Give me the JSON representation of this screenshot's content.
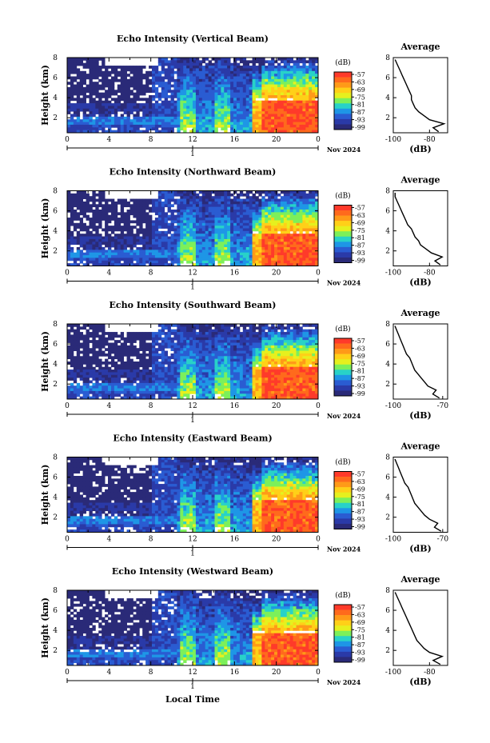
{
  "figure": {
    "xlabel": "Local Time",
    "date_label": "Nov 2024",
    "day_label": "1",
    "unit_label": "(dB)",
    "ylabel": "Height (km)",
    "avg_title": "Average",
    "avg_xlabel": "(dB)"
  },
  "colorbar": {
    "ticks": [
      "-57",
      "-63",
      "-69",
      "-75",
      "-81",
      "-87",
      "-93",
      "-99"
    ],
    "colors": [
      "#ff3a2a",
      "#ff6a1c",
      "#ff9a18",
      "#ffd018",
      "#e6f01e",
      "#7cf05a",
      "#28d2c8",
      "#1e96e6",
      "#2a5cd2",
      "#2a3aa8",
      "#2a2a78"
    ]
  },
  "colors": {
    "gap": "#ffffff",
    "line": "#000000"
  },
  "chart_data": [
    {
      "type": "heatmap",
      "title": "Echo Intensity (Vertical Beam)",
      "x_ticks": [
        "0",
        "4",
        "8",
        "12",
        "16",
        "20",
        "0"
      ],
      "xlim": [
        0,
        24
      ],
      "y_ticks": [
        "8",
        "6",
        "4",
        "2"
      ],
      "ylim": [
        0.5,
        8
      ],
      "avg_profile": {
        "xlim": [
          -100,
          -70
        ],
        "x_ticks": [
          "-100",
          "-80"
        ],
        "y_ticks": [
          "8",
          "6",
          "4",
          "2"
        ],
        "ylim": [
          0.5,
          8
        ],
        "height_km": [
          0.6,
          1.0,
          1.4,
          1.8,
          2.2,
          2.6,
          3.0,
          3.4,
          3.8,
          4.2,
          4.6,
          5.0,
          5.4,
          5.8,
          6.2,
          6.6,
          7.0,
          7.4,
          7.8
        ],
        "value_db": [
          -75,
          -78,
          -72,
          -80,
          -83,
          -86,
          -88,
          -89,
          -90,
          -90,
          -91,
          -92,
          -93,
          -94,
          -95,
          -96,
          -97,
          -98,
          -99
        ]
      }
    },
    {
      "type": "heatmap",
      "title": "Echo Intensity (Northward Beam)",
      "x_ticks": [
        "0",
        "4",
        "8",
        "12",
        "16",
        "20",
        "0"
      ],
      "xlim": [
        0,
        24
      ],
      "y_ticks": [
        "8",
        "6",
        "4",
        "2"
      ],
      "ylim": [
        0.5,
        8
      ],
      "avg_profile": {
        "xlim": [
          -100,
          -70
        ],
        "x_ticks": [
          "-100",
          "-80"
        ],
        "y_ticks": [
          "8",
          "6",
          "4",
          "2"
        ],
        "ylim": [
          0.5,
          8
        ],
        "height_km": [
          0.6,
          1.0,
          1.4,
          1.8,
          2.2,
          2.6,
          3.0,
          3.4,
          3.8,
          4.2,
          4.6,
          5.0,
          5.4,
          5.8,
          6.2,
          6.6,
          7.0,
          7.4,
          7.8
        ],
        "value_db": [
          -74,
          -77,
          -73,
          -79,
          -82,
          -85,
          -86,
          -88,
          -89,
          -90,
          -92,
          -93,
          -94,
          -95,
          -96,
          -97,
          -98,
          -99,
          -99
        ]
      }
    },
    {
      "type": "heatmap",
      "title": "Echo Intensity (Southward Beam)",
      "x_ticks": [
        "0",
        "4",
        "8",
        "12",
        "16",
        "20",
        "0"
      ],
      "xlim": [
        0,
        24
      ],
      "y_ticks": [
        "8",
        "6",
        "4",
        "2"
      ],
      "ylim": [
        0.5,
        8
      ],
      "avg_profile": {
        "xlim": [
          -100,
          -67
        ],
        "x_ticks": [
          "-100",
          "-70"
        ],
        "y_ticks": [
          "8",
          "6",
          "4",
          "2"
        ],
        "ylim": [
          0.5,
          8
        ],
        "height_km": [
          0.6,
          1.0,
          1.4,
          1.8,
          2.2,
          2.6,
          3.0,
          3.4,
          3.8,
          4.2,
          4.6,
          5.0,
          5.4,
          5.8,
          6.2,
          6.6,
          7.0,
          7.4,
          7.8
        ],
        "value_db": [
          -72,
          -76,
          -74,
          -79,
          -81,
          -83,
          -85,
          -87,
          -88,
          -89,
          -90,
          -92,
          -93,
          -94,
          -95,
          -96,
          -97,
          -98,
          -99
        ]
      }
    },
    {
      "type": "heatmap",
      "title": "Echo Intensity (Eastward Beam)",
      "x_ticks": [
        "0",
        "4",
        "8",
        "12",
        "16",
        "20",
        "0"
      ],
      "xlim": [
        0,
        24
      ],
      "y_ticks": [
        "8",
        "6",
        "4",
        "2"
      ],
      "ylim": [
        0.5,
        8
      ],
      "avg_profile": {
        "xlim": [
          -100,
          -67
        ],
        "x_ticks": [
          "-100",
          "-70"
        ],
        "y_ticks": [
          "8",
          "6",
          "4",
          "2"
        ],
        "ylim": [
          0.5,
          8
        ],
        "height_km": [
          0.6,
          1.0,
          1.4,
          1.8,
          2.2,
          2.6,
          3.0,
          3.4,
          3.8,
          4.2,
          4.6,
          5.0,
          5.4,
          5.8,
          6.2,
          6.6,
          7.0,
          7.4,
          7.8
        ],
        "value_db": [
          -71,
          -75,
          -73,
          -78,
          -81,
          -83,
          -85,
          -87,
          -88,
          -89,
          -90,
          -91,
          -93,
          -94,
          -95,
          -96,
          -97,
          -98,
          -99
        ]
      }
    },
    {
      "type": "heatmap",
      "title": "Echo Intensity (Westward Beam)",
      "x_ticks": [
        "0",
        "4",
        "8",
        "12",
        "16",
        "20",
        "0"
      ],
      "xlim": [
        0,
        24
      ],
      "y_ticks": [
        "8",
        "6",
        "4",
        "2"
      ],
      "ylim": [
        0.5,
        8
      ],
      "avg_profile": {
        "xlim": [
          -100,
          -70
        ],
        "x_ticks": [
          "-100",
          "-80"
        ],
        "y_ticks": [
          "8",
          "6",
          "4",
          "2"
        ],
        "ylim": [
          0.5,
          8
        ],
        "height_km": [
          0.6,
          1.0,
          1.4,
          1.8,
          2.2,
          2.6,
          3.0,
          3.4,
          3.8,
          4.2,
          4.6,
          5.0,
          5.4,
          5.8,
          6.2,
          6.6,
          7.0,
          7.4,
          7.8
        ],
        "value_db": [
          -74,
          -78,
          -73,
          -80,
          -83,
          -85,
          -87,
          -88,
          -89,
          -90,
          -91,
          -92,
          -93,
          -94,
          -95,
          -96,
          -97,
          -98,
          -99
        ]
      }
    }
  ]
}
